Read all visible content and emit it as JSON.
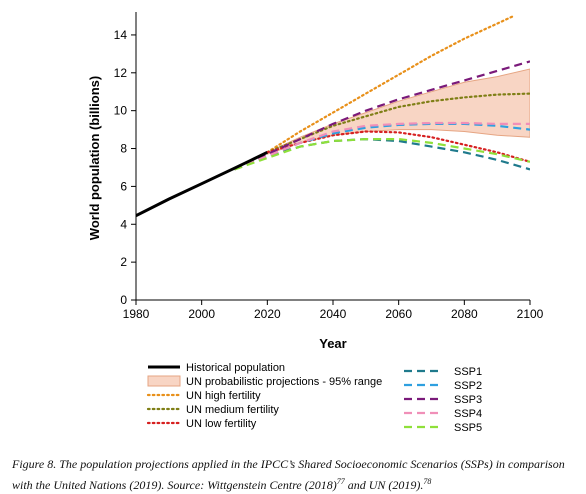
{
  "chart_data": {
    "type": "line",
    "xlabel": "Year",
    "ylabel": "World population (billions)",
    "xlim": [
      1980,
      2100
    ],
    "ylim": [
      0,
      15
    ],
    "xticks": [
      1980,
      2000,
      2020,
      2040,
      2060,
      2080,
      2100
    ],
    "yticks": [
      0,
      2,
      4,
      6,
      8,
      10,
      12,
      14
    ],
    "band": {
      "name": "UN probabilistic projections - 95% range",
      "color": "#f8d5c4",
      "border": "#e6a583",
      "x": [
        2020,
        2030,
        2040,
        2050,
        2060,
        2070,
        2080,
        2090,
        2100
      ],
      "upper": [
        7.8,
        8.6,
        9.3,
        9.9,
        10.5,
        11.0,
        11.5,
        11.8,
        12.2
      ],
      "lower": [
        7.7,
        8.3,
        8.7,
        8.9,
        9.0,
        9.0,
        8.9,
        8.7,
        8.6
      ]
    },
    "series": [
      {
        "name": "Historical population",
        "color": "#000000",
        "style": "solid",
        "x": [
          1980,
          1990,
          2000,
          2010,
          2015,
          2020
        ],
        "values": [
          4.45,
          5.33,
          6.14,
          6.96,
          7.38,
          7.8
        ]
      },
      {
        "name": "UN high fertility",
        "color": "#e8901a",
        "style": "dotted",
        "x": [
          2020,
          2030,
          2040,
          2050,
          2060,
          2070,
          2080,
          2090,
          2095
        ],
        "values": [
          7.8,
          8.9,
          9.9,
          10.9,
          11.9,
          12.9,
          13.8,
          14.6,
          15.0
        ]
      },
      {
        "name": "UN medium fertility",
        "color": "#7f7f16",
        "style": "dotted",
        "x": [
          2020,
          2030,
          2040,
          2050,
          2060,
          2070,
          2080,
          2090,
          2100
        ],
        "values": [
          7.8,
          8.5,
          9.2,
          9.7,
          10.2,
          10.5,
          10.7,
          10.85,
          10.9
        ]
      },
      {
        "name": "UN low fertility",
        "color": "#d62020",
        "style": "dotted",
        "x": [
          2020,
          2030,
          2040,
          2050,
          2060,
          2070,
          2080,
          2090,
          2100
        ],
        "values": [
          7.8,
          8.3,
          8.7,
          8.9,
          8.85,
          8.6,
          8.2,
          7.8,
          7.3
        ]
      },
      {
        "name": "SSP1",
        "color": "#1f7a8c",
        "style": "dashed",
        "x": [
          2010,
          2020,
          2030,
          2040,
          2050,
          2060,
          2070,
          2080,
          2090,
          2100
        ],
        "values": [
          6.9,
          7.6,
          8.1,
          8.4,
          8.5,
          8.4,
          8.1,
          7.8,
          7.4,
          6.9
        ]
      },
      {
        "name": "SSP2",
        "color": "#2ea0e0",
        "style": "dashed",
        "x": [
          2010,
          2020,
          2030,
          2040,
          2050,
          2060,
          2070,
          2080,
          2090,
          2100
        ],
        "values": [
          6.9,
          7.6,
          8.3,
          8.8,
          9.1,
          9.25,
          9.3,
          9.3,
          9.2,
          9.0
        ]
      },
      {
        "name": "SSP3",
        "color": "#7a1a7a",
        "style": "dashed",
        "x": [
          2010,
          2020,
          2030,
          2040,
          2050,
          2060,
          2070,
          2080,
          2090,
          2100
        ],
        "values": [
          6.9,
          7.7,
          8.5,
          9.3,
          10.0,
          10.6,
          11.1,
          11.6,
          12.1,
          12.6
        ]
      },
      {
        "name": "SSP4",
        "color": "#f08fb8",
        "style": "dashed",
        "x": [
          2010,
          2020,
          2030,
          2040,
          2050,
          2060,
          2070,
          2080,
          2090,
          2100
        ],
        "values": [
          6.9,
          7.6,
          8.3,
          8.9,
          9.2,
          9.3,
          9.35,
          9.35,
          9.3,
          9.3
        ]
      },
      {
        "name": "SSP5",
        "color": "#8fe03a",
        "style": "dashed",
        "x": [
          2010,
          2020,
          2030,
          2040,
          2050,
          2060,
          2070,
          2080,
          2090,
          2100
        ],
        "values": [
          6.9,
          7.5,
          8.1,
          8.4,
          8.5,
          8.5,
          8.3,
          8.0,
          7.7,
          7.3
        ]
      }
    ]
  },
  "caption": {
    "prefix": "Figure 8. The population projections applied in the IPCC’s Shared Socioeconomic Scenarios (SSPs) in comparison with the United Nations (2019). Source: Wittgenstein Centre (2018)",
    "ref1": "77",
    "middle": " and UN (2019).",
    "ref2": "78"
  }
}
